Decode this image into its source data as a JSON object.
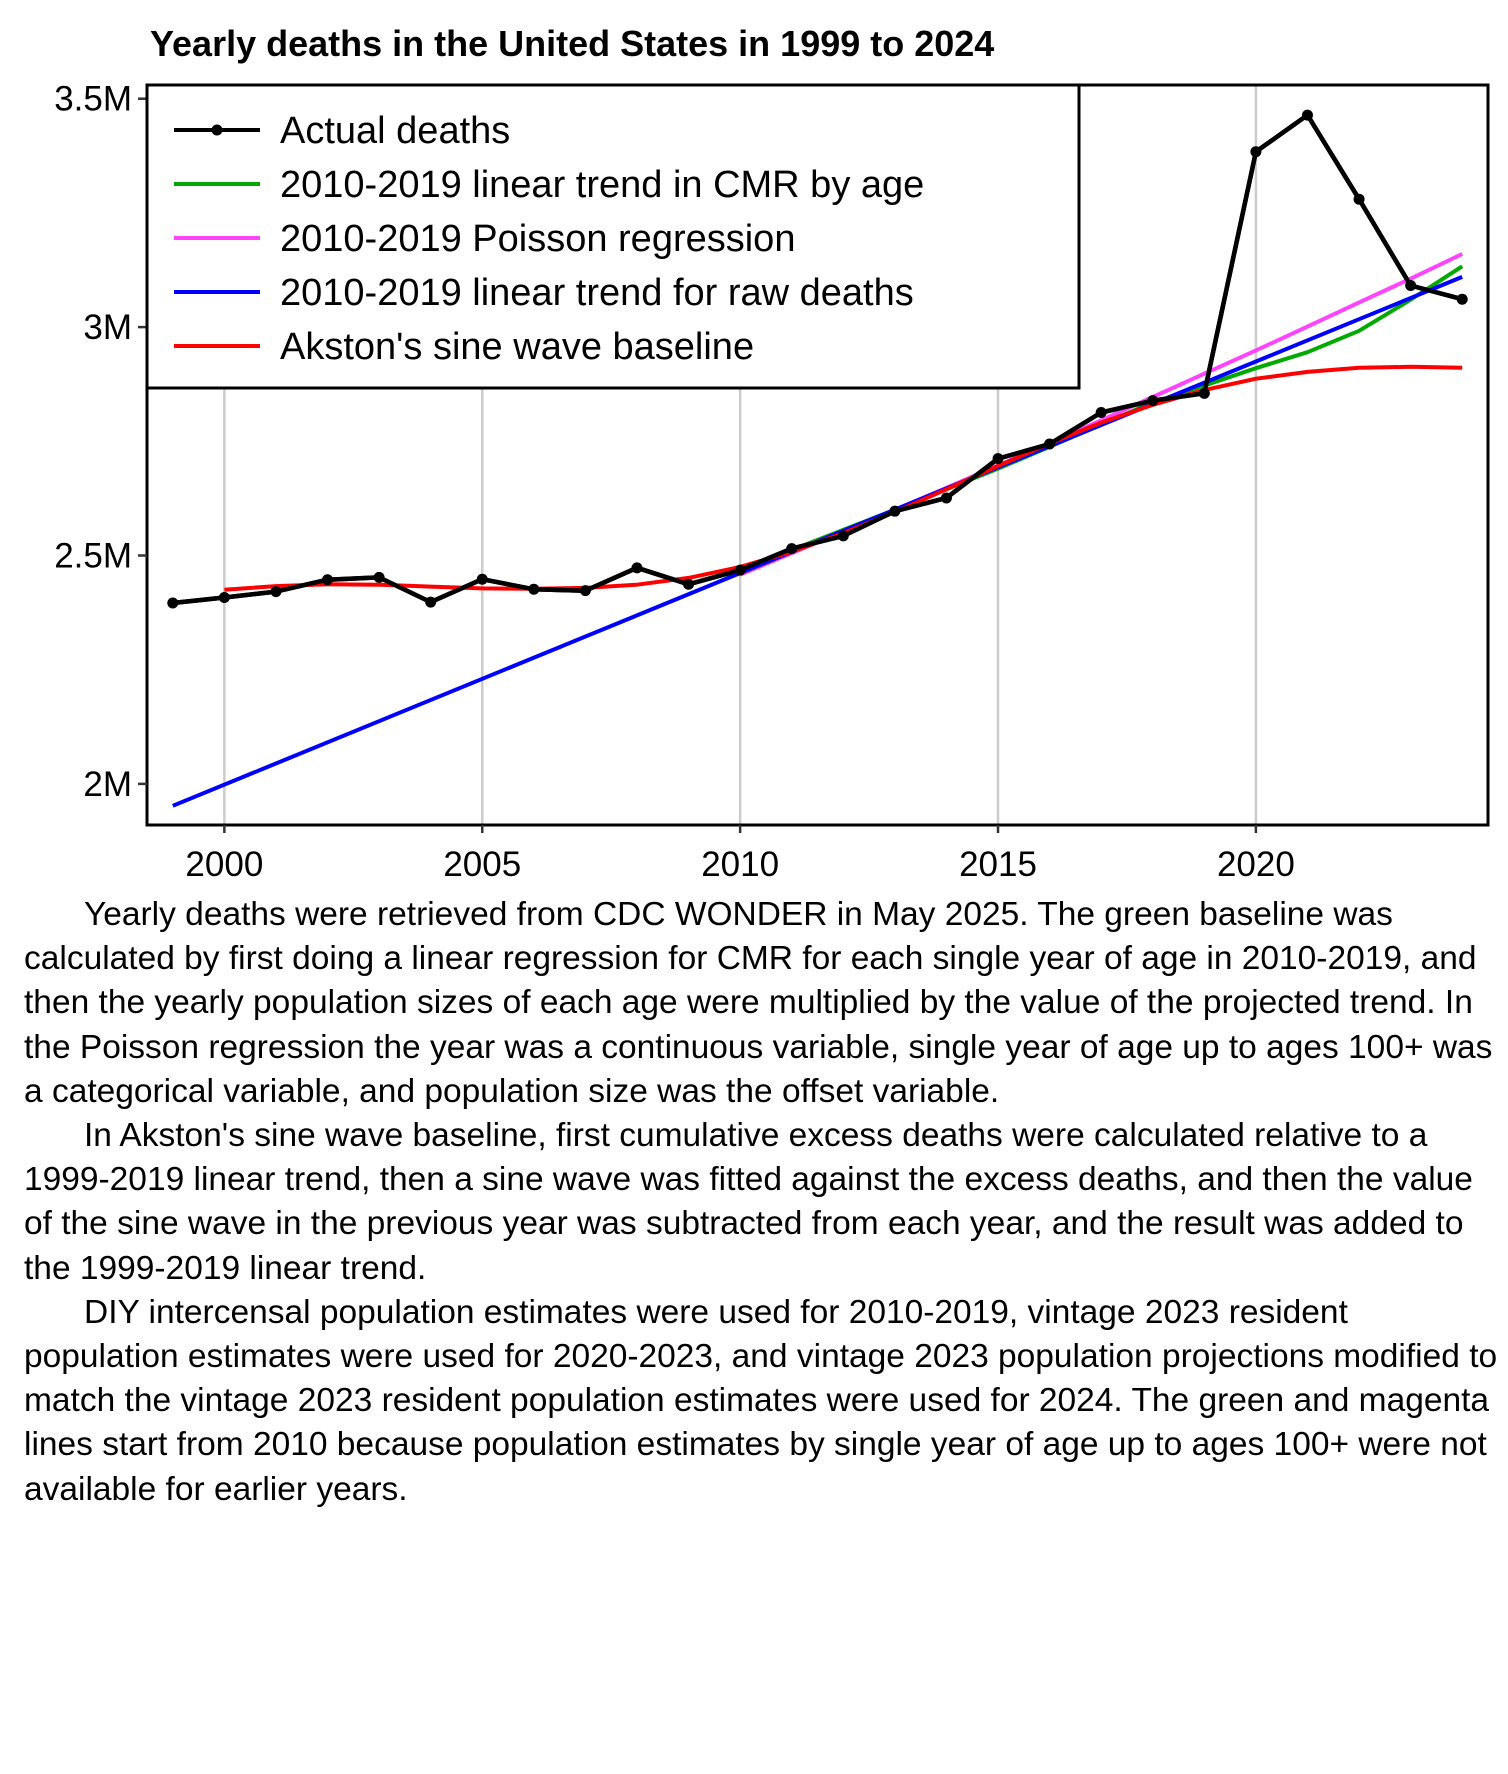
{
  "chart_data": {
    "type": "line",
    "title": "Yearly deaths in the United States in 1999 to 2024",
    "xlabel": "",
    "ylabel": "",
    "xlim": [
      1998.5,
      2024.5
    ],
    "ylim": [
      1.91,
      3.53
    ],
    "x_ticks": [
      2000,
      2005,
      2010,
      2015,
      2020
    ],
    "x_tick_labels": [
      "2000",
      "2005",
      "2010",
      "2015",
      "2020"
    ],
    "y_ticks": [
      2.0,
      2.5,
      3.0,
      3.5
    ],
    "y_tick_labels": [
      "2M",
      "2.5M",
      "3M",
      "3.5M"
    ],
    "y_unit": "millions of deaths",
    "grid": "vertical lines at x ticks",
    "legend_position": "top-left",
    "series": [
      {
        "name": "Actual deaths",
        "color": "#000000",
        "markers": true,
        "x": [
          1999,
          2000,
          2001,
          2002,
          2003,
          2004,
          2005,
          2006,
          2007,
          2008,
          2009,
          2010,
          2011,
          2012,
          2013,
          2014,
          2015,
          2016,
          2017,
          2018,
          2019,
          2020,
          2021,
          2022,
          2023,
          2024
        ],
        "values": [
          2.396,
          2.408,
          2.421,
          2.447,
          2.452,
          2.398,
          2.448,
          2.426,
          2.423,
          2.473,
          2.437,
          2.468,
          2.515,
          2.543,
          2.597,
          2.626,
          2.712,
          2.744,
          2.813,
          2.839,
          2.855,
          3.384,
          3.464,
          3.28,
          3.091,
          3.061
        ]
      },
      {
        "name": "2010-2019 linear trend in CMR by age",
        "color": "#00aa00",
        "markers": false,
        "x": [
          2010,
          2011,
          2012,
          2013,
          2014,
          2015,
          2016,
          2017,
          2018,
          2019,
          2020,
          2021,
          2022,
          2023,
          2024
        ],
        "values": [
          2.466,
          2.512,
          2.556,
          2.6,
          2.645,
          2.69,
          2.738,
          2.787,
          2.835,
          2.872,
          2.91,
          2.945,
          2.992,
          3.06,
          3.133
        ]
      },
      {
        "name": "2010-2019 Poisson regression",
        "color": "#ff44ff",
        "markers": false,
        "x": [
          2010,
          2011,
          2012,
          2013,
          2014,
          2015,
          2016,
          2017,
          2018,
          2019,
          2020,
          2021,
          2022,
          2023,
          2024
        ],
        "values": [
          2.458,
          2.505,
          2.552,
          2.6,
          2.648,
          2.697,
          2.746,
          2.796,
          2.847,
          2.898,
          2.949,
          3.001,
          3.054,
          3.106,
          3.16
        ]
      },
      {
        "name": "2010-2019 linear trend for raw deaths",
        "color": "#0000ff",
        "markers": false,
        "x": [
          1999,
          2024
        ],
        "values": [
          1.952,
          3.11
        ]
      },
      {
        "name": "Akston's sine wave baseline",
        "color": "#ff0000",
        "markers": false,
        "x": [
          2000,
          2001,
          2002,
          2003,
          2004,
          2005,
          2006,
          2007,
          2008,
          2009,
          2010,
          2011,
          2012,
          2013,
          2014,
          2015,
          2016,
          2017,
          2018,
          2019,
          2020,
          2021,
          2022,
          2023,
          2024
        ],
        "values": [
          2.425,
          2.433,
          2.437,
          2.436,
          2.432,
          2.428,
          2.427,
          2.429,
          2.436,
          2.451,
          2.475,
          2.508,
          2.549,
          2.595,
          2.645,
          2.696,
          2.745,
          2.791,
          2.83,
          2.862,
          2.887,
          2.902,
          2.911,
          2.913,
          2.911
        ]
      }
    ]
  },
  "notes": [
    "Yearly deaths were retrieved from CDC WONDER in May 2025. The green baseline was calculated by first doing a linear regression for CMR for each single year of age in 2010-2019, and then the yearly population sizes of each age were multiplied by the value of the projected trend. In the Poisson regression the year was a continuous variable, single year of age up to ages 100+ was a categorical variable, and population size was the offset variable.",
    "In Akston's sine wave baseline, first cumulative excess deaths were calculated relative to a 1999-2019 linear trend, then a sine wave was fitted against the excess deaths, and then the value of the sine wave in the previous year was subtracted from each year, and the result was added to the 1999-2019 linear trend.",
    "DIY intercensal population estimates were used for 2010-2019, vintage 2023 resident population estimates were used for 2020-2023, and vintage 2023 population projections modified to match the vintage 2023 resident population estimates were used for 2024. The green and magenta lines start from 2010 because population estimates by single year of age up to ages 100+ were not available for earlier years."
  ]
}
